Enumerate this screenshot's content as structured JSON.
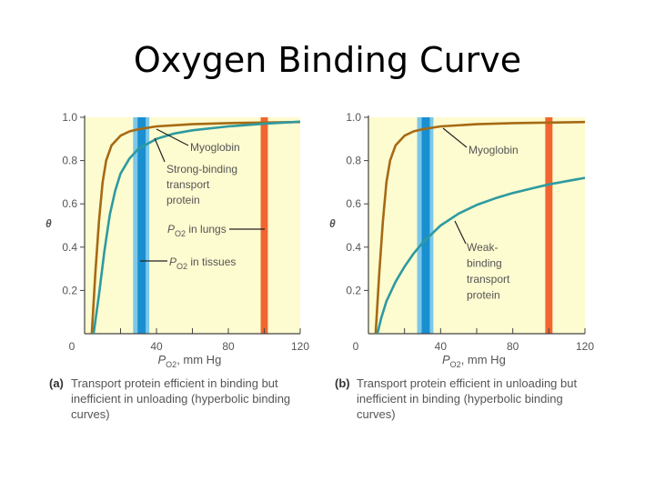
{
  "title": "Oxygen Binding Curve",
  "chart_data": [
    {
      "type": "line",
      "panel": "a",
      "ylabel": "θ",
      "xlabel": {
        "var": "P",
        "sub": "O2",
        "rest": ", mm Hg"
      },
      "xlim": [
        0,
        120
      ],
      "ylim": [
        0,
        1.0
      ],
      "xticks": [
        0,
        40,
        80,
        120
      ],
      "xminor": [
        20,
        60,
        100
      ],
      "yticks": [
        "0.2",
        "0.4",
        "0.6",
        "0.8",
        "1.0"
      ],
      "bands": [
        {
          "name": "tissues",
          "from": 27,
          "to": 36,
          "core": [
            29.5,
            34
          ],
          "color": "#1a8fd0",
          "edge": "#7cc8e8"
        },
        {
          "name": "lungs",
          "from": 98,
          "to": 102,
          "color": "#f26530"
        }
      ],
      "series": [
        {
          "name": "Myoglobin",
          "color": "#a66a14",
          "points": [
            [
              4,
              0
            ],
            [
              6,
              0.28
            ],
            [
              8,
              0.52
            ],
            [
              10,
              0.7
            ],
            [
              12,
              0.8
            ],
            [
              15,
              0.87
            ],
            [
              20,
              0.915
            ],
            [
              25,
              0.935
            ],
            [
              30,
              0.945
            ],
            [
              40,
              0.958
            ],
            [
              60,
              0.968
            ],
            [
              80,
              0.973
            ],
            [
              120,
              0.978
            ]
          ]
        },
        {
          "name": "Strong-binding transport protein",
          "color": "#2e9aa0",
          "points": [
            [
              5,
              0
            ],
            [
              8,
              0.18
            ],
            [
              11,
              0.38
            ],
            [
              14,
              0.55
            ],
            [
              17,
              0.66
            ],
            [
              20,
              0.74
            ],
            [
              25,
              0.81
            ],
            [
              30,
              0.855
            ],
            [
              40,
              0.9
            ],
            [
              50,
              0.925
            ],
            [
              60,
              0.94
            ],
            [
              80,
              0.958
            ],
            [
              100,
              0.97
            ],
            [
              120,
              0.98
            ]
          ]
        }
      ],
      "annotations": [
        {
          "lines": [
            "Myoglobin"
          ]
        },
        {
          "lines": [
            "Strong-binding",
            "transport",
            "protein"
          ]
        },
        {
          "var": "P",
          "sub": "O2",
          "lines": [
            "in lungs"
          ]
        },
        {
          "var": "P",
          "sub": "O2",
          "lines": [
            "in tissues"
          ]
        }
      ],
      "caption": {
        "label": "(a)",
        "lines": [
          "Transport protein efficient in binding but",
          "inefficient in unloading (hyperbolic binding",
          "curves)"
        ]
      }
    },
    {
      "type": "line",
      "panel": "b",
      "ylabel": "θ",
      "xlabel": {
        "var": "P",
        "sub": "O2",
        "rest": ", mm Hg"
      },
      "xlim": [
        0,
        120
      ],
      "ylim": [
        0,
        1.0
      ],
      "xticks": [
        0,
        40,
        80,
        120
      ],
      "xminor": [
        20,
        60,
        100
      ],
      "yticks": [
        "0.2",
        "0.4",
        "0.6",
        "0.8",
        "1.0"
      ],
      "bands": [
        {
          "name": "tissues",
          "from": 27,
          "to": 36,
          "core": [
            29.5,
            34
          ],
          "color": "#1a8fd0",
          "edge": "#7cc8e8"
        },
        {
          "name": "lungs",
          "from": 98,
          "to": 102,
          "color": "#f26530"
        }
      ],
      "series": [
        {
          "name": "Myoglobin",
          "color": "#a66a14",
          "points": [
            [
              4,
              0
            ],
            [
              6,
              0.28
            ],
            [
              8,
              0.52
            ],
            [
              10,
              0.7
            ],
            [
              12,
              0.8
            ],
            [
              15,
              0.87
            ],
            [
              20,
              0.915
            ],
            [
              25,
              0.935
            ],
            [
              30,
              0.945
            ],
            [
              40,
              0.958
            ],
            [
              60,
              0.968
            ],
            [
              80,
              0.973
            ],
            [
              120,
              0.978
            ]
          ]
        },
        {
          "name": "Weak-binding transport protein",
          "color": "#2e9aa0",
          "points": [
            [
              5,
              0
            ],
            [
              7,
              0.07
            ],
            [
              10,
              0.15
            ],
            [
              15,
              0.24
            ],
            [
              20,
              0.31
            ],
            [
              25,
              0.37
            ],
            [
              30,
              0.42
            ],
            [
              40,
              0.5
            ],
            [
              50,
              0.555
            ],
            [
              60,
              0.595
            ],
            [
              70,
              0.625
            ],
            [
              80,
              0.65
            ],
            [
              90,
              0.67
            ],
            [
              100,
              0.69
            ],
            [
              110,
              0.705
            ],
            [
              120,
              0.72
            ]
          ]
        }
      ],
      "annotations": [
        {
          "lines": [
            "Myoglobin"
          ]
        },
        {
          "lines": [
            "Weak-",
            "binding",
            "transport",
            "protein"
          ]
        }
      ],
      "caption": {
        "label": "(b)",
        "lines": [
          "Transport protein efficient in unloading but",
          "inefficient in binding (hyperbolic binding",
          "curves)"
        ]
      }
    }
  ]
}
